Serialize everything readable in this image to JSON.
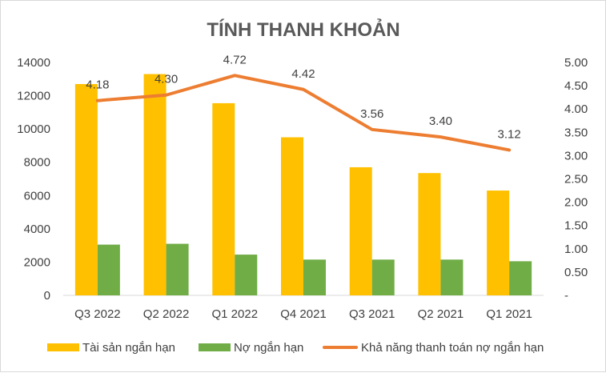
{
  "chart_data": {
    "type": "bar",
    "title": "TÍNH THANH KHOẢN",
    "categories": [
      "Q3 2022",
      "Q2 2022",
      "Q1 2022",
      "Q4 2021",
      "Q3 2021",
      "Q2 2021",
      "Q1 2021"
    ],
    "series": [
      {
        "name": "Tài sản ngắn hạn",
        "type": "bar",
        "axis": "left",
        "color": "#FFC000",
        "values": [
          12700,
          13300,
          11550,
          9500,
          7700,
          7350,
          6300
        ]
      },
      {
        "name": "Nợ ngắn hạn",
        "type": "bar",
        "axis": "left",
        "color": "#70AD47",
        "values": [
          3050,
          3100,
          2450,
          2150,
          2150,
          2150,
          2050
        ]
      },
      {
        "name": "Khả năng thanh toán nợ ngắn hạn",
        "type": "line",
        "axis": "right",
        "color": "#ED7D31",
        "values": [
          4.18,
          4.3,
          4.72,
          4.42,
          3.56,
          3.4,
          3.12
        ],
        "labels": [
          "4.18",
          "4.30",
          "4.72",
          "4.42",
          "3.56",
          "3.40",
          "3.12"
        ]
      }
    ],
    "y_left": {
      "ylim": [
        0,
        14000
      ],
      "ticks": [
        "0",
        "2000",
        "4000",
        "6000",
        "8000",
        "10000",
        "12000",
        "14000"
      ]
    },
    "y_right": {
      "ylim": [
        0,
        5
      ],
      "ticks": [
        "-",
        "0.50",
        "1.00",
        "1.50",
        "2.00",
        "2.50",
        "3.00",
        "3.50",
        "4.00",
        "4.50",
        "5.00"
      ]
    },
    "grid": false,
    "legend": "bottom"
  }
}
